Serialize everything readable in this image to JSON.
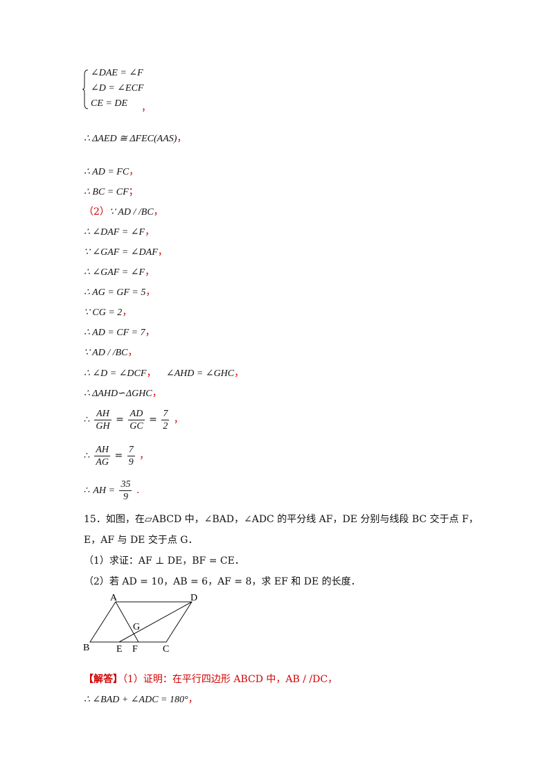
{
  "system": {
    "l1": "∠DAE = ∠F",
    "l2": "∠D = ∠ECF",
    "l3": "CE = DE",
    "sep": "，"
  },
  "steps": {
    "congr": "∴ ΔAED ≅ ΔFEC(AAS)",
    "ad_fc": "∴ AD = FC",
    "bc_cf": "∴ BC = CF",
    "semi": "；",
    "part2_no": "（2）",
    "part2": "∵ AD / /BC",
    "s1": "∴ ∠DAF = ∠F",
    "s2": "∵ ∠GAF = ∠DAF",
    "s3": "∴ ∠GAF = ∠F",
    "s4": "∴ AG = GF = 5",
    "s5": "∵ CG = 2",
    "s6": "∴ AD = CF = 7",
    "s7": "∵ AD / /BC",
    "s8a": "∴ ∠D = ∠DCF",
    "s8b": "∠AHD = ∠GHC",
    "s9": "∴ ΔAHD∽ΔGHC",
    "comma": "，",
    "therefore": "∴",
    "f1_num": "AH",
    "f1_den": "GH",
    "f2_num": "AD",
    "f2_den": "GC",
    "f3_num": "7",
    "f3_den": "2",
    "f4_num": "AH",
    "f4_den": "AG",
    "f5_num": "7",
    "f5_den": "9",
    "ah_lhs": "AH =",
    "f6_num": "35",
    "f6_den": "9",
    "eq": "=",
    "dot": "."
  },
  "problem15": {
    "line1": "15．如图，在▱ABCD 中，∠BAD，∠ADC 的平分线 AF，DE 分别与线段 BC 交于点 F，",
    "line2": "E，AF 与 DE 交于点 G．",
    "line3": "（1）求证：AF ⊥ DE，BF = CE．",
    "line4": "（2）若 AD = 10，AB = 6，AF = 8，求 EF 和 DE 的长度．"
  },
  "figure": {
    "labels": {
      "A": "A",
      "D": "D",
      "B": "B",
      "C": "C",
      "E": "E",
      "F": "F",
      "G": "G"
    }
  },
  "answer": {
    "tag": "【解答】",
    "line1": "（1）证明：在平行四边形 ABCD 中，AB / /DC，",
    "line2": "∴ ∠BAD + ∠ADC = 180°",
    "comma": "，"
  },
  "colors": {
    "red": "#d10000",
    "text": "#111111"
  }
}
